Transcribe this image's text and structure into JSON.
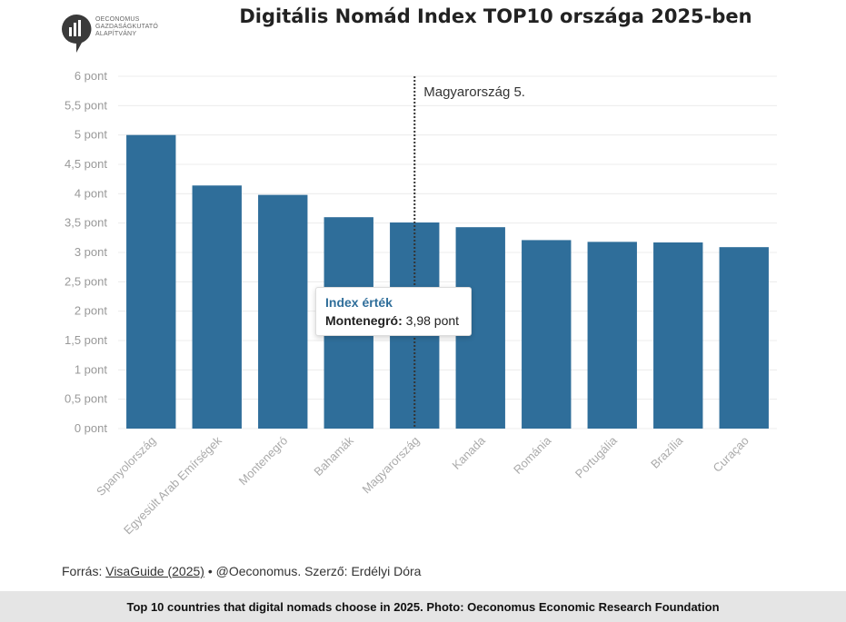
{
  "logo": {
    "lines": [
      "OECONOMUS",
      "GAZDASÁGKUTATÓ",
      "ALAPÍTVÁNY"
    ]
  },
  "chart_data": {
    "type": "bar",
    "title": "Digitális Nomád Index TOP10 országa 2025-ben",
    "categories": [
      "Spanyolország",
      "Egyesült Arab Emírségek",
      "Montenegró",
      "Bahamák",
      "Magyarország",
      "Kanada",
      "Románia",
      "Portugália",
      "Brazília",
      "Curaçao"
    ],
    "values": [
      5.0,
      4.14,
      3.98,
      3.6,
      3.51,
      3.43,
      3.21,
      3.18,
      3.17,
      3.09
    ],
    "ylim": [
      0,
      6
    ],
    "yticks": [
      0,
      0.5,
      1,
      1.5,
      2,
      2.5,
      3,
      3.5,
      4,
      4.5,
      5,
      5.5,
      6
    ],
    "ytick_labels": [
      "0 pont",
      "0,5 pont",
      "1 pont",
      "1,5 pont",
      "2 pont",
      "2,5 pont",
      "3 pont",
      "3,5 pont",
      "4 pont",
      "4,5 pont",
      "5 pont",
      "5,5 pont",
      "6 pont"
    ],
    "grid": true,
    "bar_color": "#2f6e9a",
    "annotation": {
      "category": "Magyarország",
      "label": "Magyarország 5."
    }
  },
  "tooltip": {
    "title": "Index érték",
    "country": "Montenegró:",
    "value": "3,98 pont"
  },
  "source": {
    "prefix": "Forrás: ",
    "link": "VisaGuide (2025)",
    "suffix": " • @Oeconomus. Szerző: Erdélyi Dóra"
  },
  "caption": "Top 10 countries that digital nomads choose in 2025. Photo: Oeconomus Economic Research Foundation"
}
